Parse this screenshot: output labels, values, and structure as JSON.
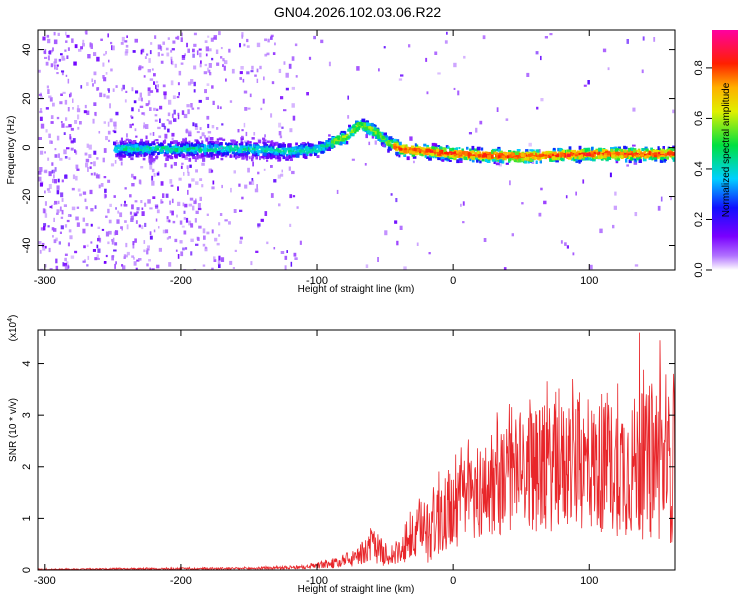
{
  "title": "GN04.2026.102.03.06.R22",
  "chart_data": [
    {
      "type": "heatmap",
      "name": "spectrogram",
      "xlabel": "Height of straight line (km)",
      "ylabel": "Frequency (Hz)",
      "xlim": [
        -305,
        163
      ],
      "ylim": [
        -50,
        48
      ],
      "x_ticks": [
        -300,
        -200,
        -100,
        0,
        100
      ],
      "y_ticks": [
        -40,
        -20,
        0,
        20,
        40
      ],
      "colorbar": {
        "label": "Normalized spectral amplitude",
        "range": [
          0.0,
          0.95
        ],
        "ticks": [
          0.0,
          0.2,
          0.4,
          0.6,
          0.8
        ],
        "colormap": "rainbow (purple-blue-cyan-green-yellow-red-magenta)"
      },
      "ridge": {
        "description": "dominant frequency ridge",
        "x": [
          -250,
          -200,
          -150,
          -120,
          -100,
          -80,
          -70,
          -60,
          -50,
          -40,
          0,
          50,
          100,
          160
        ],
        "y": [
          0,
          0,
          0,
          -1,
          0,
          5,
          10,
          8,
          3,
          0,
          -2,
          -3,
          -2,
          -2
        ]
      }
    },
    {
      "type": "line",
      "name": "snr",
      "xlabel": "Height of straight line (km)",
      "ylabel": "SNR (10 * v/v)",
      "yscale_label": "(x10",
      "yscale_exp": "4",
      "xlim": [
        -305,
        163
      ],
      "ylim": [
        0,
        4.65
      ],
      "x_ticks": [
        -300,
        -200,
        -100,
        0,
        100
      ],
      "y_ticks": [
        0,
        1,
        2,
        3,
        4
      ],
      "color": "#e8262a",
      "envelope": {
        "x": [
          -305,
          -150,
          -110,
          -80,
          -70,
          -60,
          -50,
          -40,
          -30,
          -20,
          0,
          20,
          50,
          80,
          100,
          130,
          160
        ],
        "mean": [
          0.01,
          0.03,
          0.05,
          0.15,
          0.25,
          0.5,
          0.3,
          0.3,
          0.6,
          0.8,
          1.2,
          1.5,
          1.9,
          2.0,
          2.0,
          2.0,
          2.0
        ],
        "spread": [
          0.01,
          0.02,
          0.03,
          0.1,
          0.15,
          0.3,
          0.2,
          0.2,
          0.4,
          0.6,
          0.7,
          0.8,
          1.0,
          1.1,
          1.1,
          1.2,
          1.3
        ]
      },
      "peaks": [
        {
          "x": -62,
          "y": 0.65
        },
        {
          "x": 137,
          "y": 4.6
        },
        {
          "x": 152,
          "y": 4.45
        },
        {
          "x": 162,
          "y": 3.8
        }
      ]
    }
  ]
}
